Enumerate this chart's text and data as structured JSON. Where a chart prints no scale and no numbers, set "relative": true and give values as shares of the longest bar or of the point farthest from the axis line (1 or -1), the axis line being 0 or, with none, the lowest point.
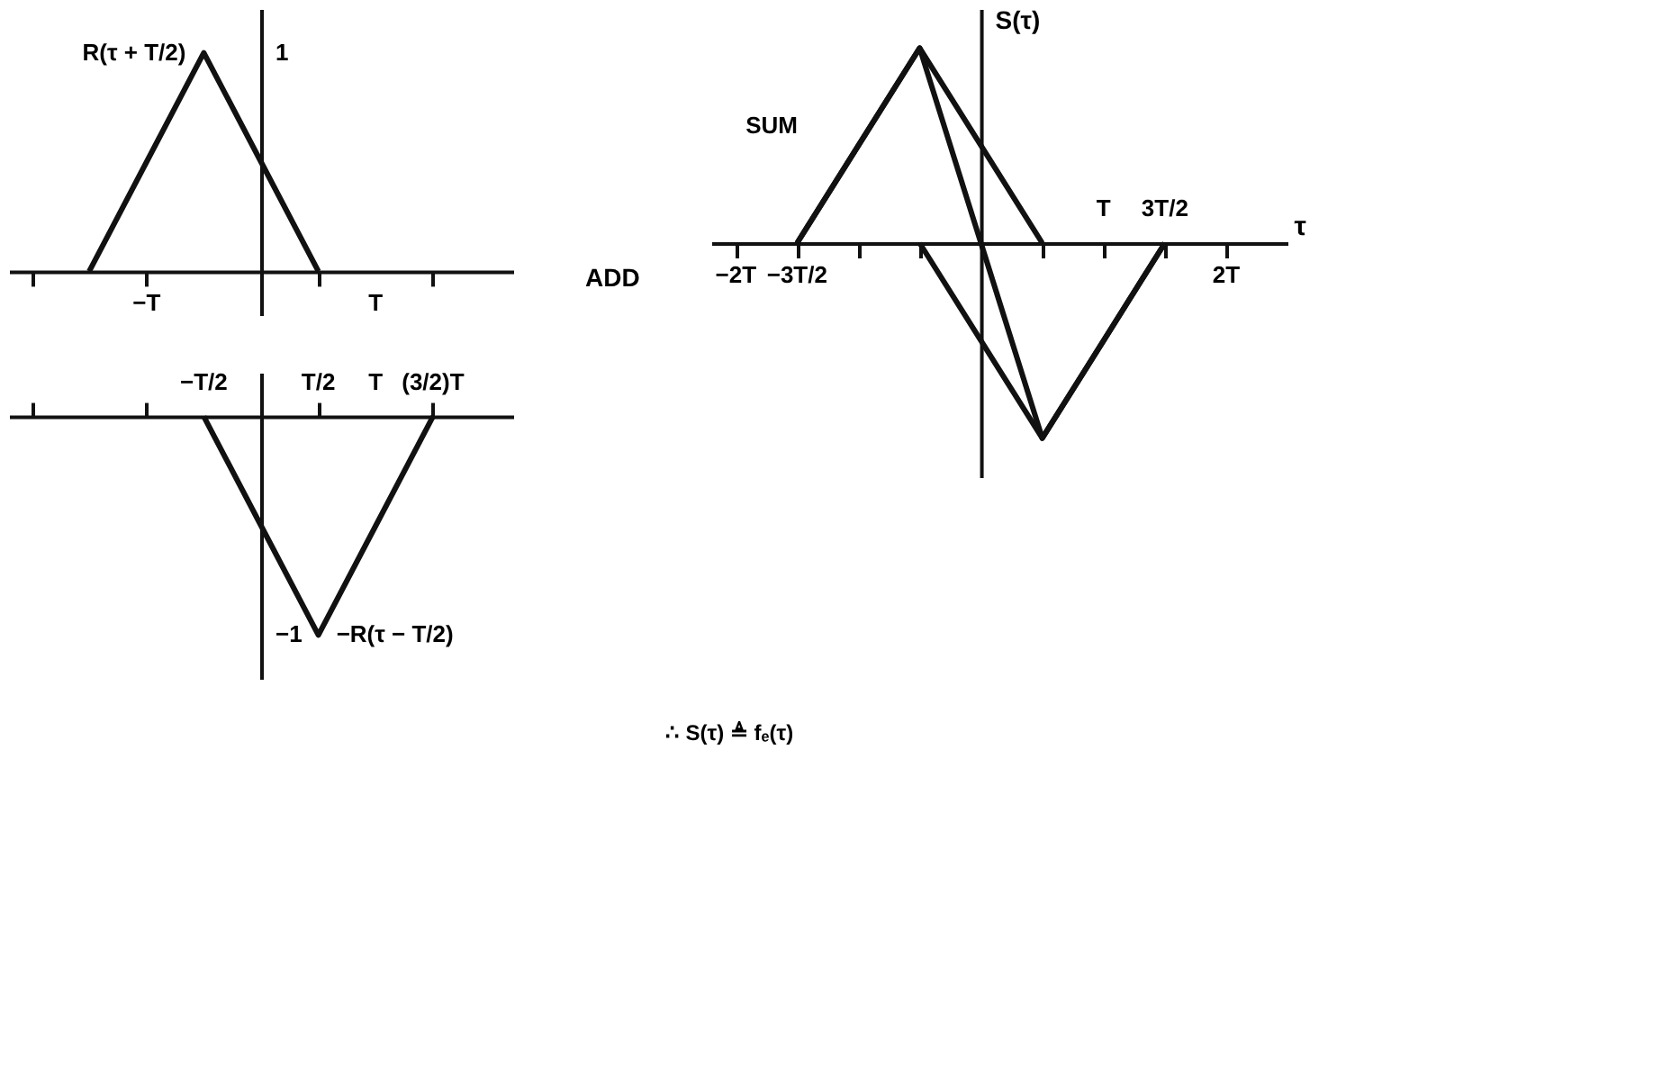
{
  "chart_data": [
    {
      "type": "line",
      "relative": true,
      "categories": [
        null,
        null,
        "−T",
        null,
        null,
        null,
        "T",
        null,
        null
      ],
      "series": [
        {
          "color": "#111111",
          "values": [
            null,
            0,
            0.5,
            1,
            0.5,
            0,
            null,
            null,
            null
          ]
        }
      ],
      "annotations": [
        "R(τ + T/2)",
        "1"
      ],
      "line_style": "solid",
      "marker": "none",
      "legend": false
    },
    {
      "type": "line",
      "relative": true,
      "categories": [
        null,
        null,
        null,
        "−T/2",
        null,
        "T/2",
        "T",
        "(3/2)T",
        null
      ],
      "series": [
        {
          "color": "#111111",
          "values": [
            null,
            null,
            null,
            0,
            -0.5,
            -1,
            -0.5,
            0,
            null
          ]
        }
      ],
      "annotations": [
        "−R(τ − T/2)",
        "−1"
      ],
      "line_style": "solid",
      "marker": "none",
      "legend": false
    },
    {
      "type": "line",
      "relative": true,
      "xlabel": "τ",
      "ylabel": "S(τ)",
      "categories": [
        "−2T",
        "−3T/2",
        null,
        null,
        null,
        null,
        "T",
        "3T/2",
        "2T"
      ],
      "series": [
        {
          "color": "#111111",
          "values": [
            null,
            0,
            0.5,
            1,
            0.5,
            0,
            null,
            null,
            null
          ]
        },
        {
          "color": "#111111",
          "values": [
            null,
            null,
            null,
            0,
            -0.5,
            -1,
            -0.5,
            0,
            null
          ]
        },
        {
          "color": "#111111",
          "values": [
            null,
            0,
            0.5,
            1,
            0,
            -1,
            -0.5,
            0,
            null
          ]
        }
      ],
      "annotations": [
        "ADD",
        "SUM",
        "∴ S(τ) ≜ fₑ(τ)"
      ],
      "line_style": "solid",
      "marker": "none",
      "legend": false
    }
  ]
}
